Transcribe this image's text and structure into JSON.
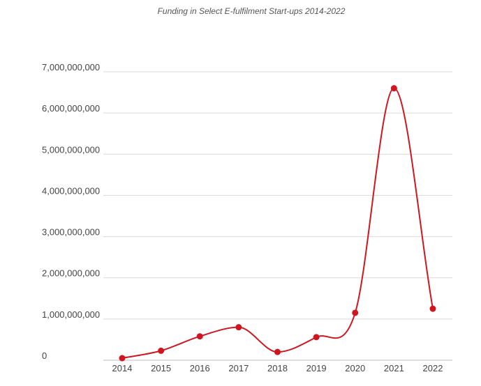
{
  "chart_data": {
    "type": "line",
    "title": "Funding in Select E-fulfilment Start-ups 2014-2022",
    "xlabel": "",
    "ylabel": "",
    "categories": [
      "2014",
      "2015",
      "2016",
      "2017",
      "2018",
      "2019",
      "2020",
      "2021",
      "2022"
    ],
    "series": [
      {
        "values": [
          50000000,
          230000000,
          580000000,
          800000000,
          200000000,
          560000000,
          1150000000,
          6600000000,
          1250000000
        ],
        "color": "#d0151e"
      }
    ],
    "ylim": [
      0,
      7000000000
    ],
    "yticks": [
      {
        "value": 0,
        "label": "0"
      },
      {
        "value": 1000000000,
        "label": "1,000,000,000"
      },
      {
        "value": 2000000000,
        "label": "2,000,000,000"
      },
      {
        "value": 3000000000,
        "label": "3,000,000,000"
      },
      {
        "value": 4000000000,
        "label": "4,000,000,000"
      },
      {
        "value": 5000000000,
        "label": "5,000,000,000"
      },
      {
        "value": 6000000000,
        "label": "6,000,000,000"
      },
      {
        "value": 7000000000,
        "label": "7,000,000,000"
      }
    ],
    "grid": true,
    "smooth": true,
    "markers": true,
    "legend": "none"
  }
}
